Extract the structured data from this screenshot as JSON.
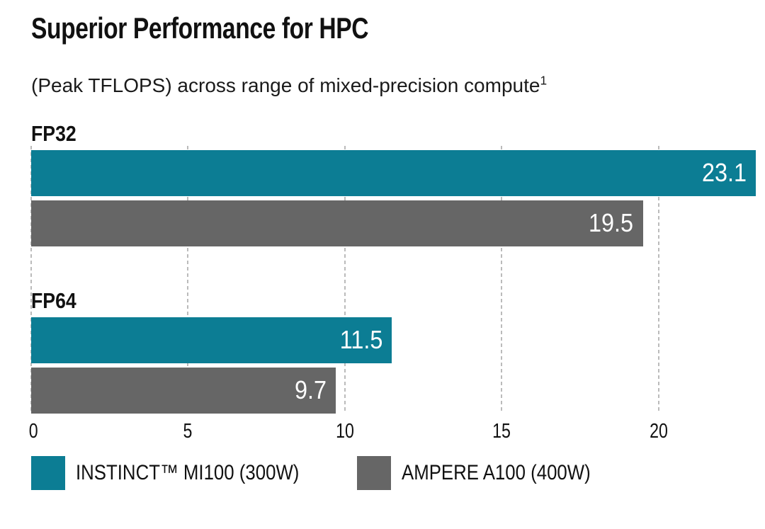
{
  "chart_data": {
    "type": "bar",
    "orientation": "horizontal",
    "title": "Superior Performance for HPC",
    "subtitle": "(Peak TFLOPS) across range of mixed-precision compute",
    "subtitle_superscript": "1",
    "categories": [
      "FP32",
      "FP64"
    ],
    "series": [
      {
        "name": "INSTINCT™ MI100 (300W)",
        "color": "#0c7d94",
        "values": [
          23.1,
          11.5
        ]
      },
      {
        "name": "AMPERE A100 (400W)",
        "color": "#666666",
        "values": [
          19.5,
          9.7
        ]
      }
    ],
    "xticks": [
      0,
      5,
      10,
      15,
      20
    ],
    "xlim": [
      0,
      23.1
    ],
    "grid": "dashed-vertical",
    "value_label_style": "inside-end-white",
    "legend_position": "bottom-left"
  },
  "colors": {
    "mi100_teal": "#0c7d94",
    "a100_gray": "#666666",
    "gridline": "#bbbbbb",
    "text": "#111111",
    "value_text": "#ffffff",
    "background": "#ffffff"
  }
}
